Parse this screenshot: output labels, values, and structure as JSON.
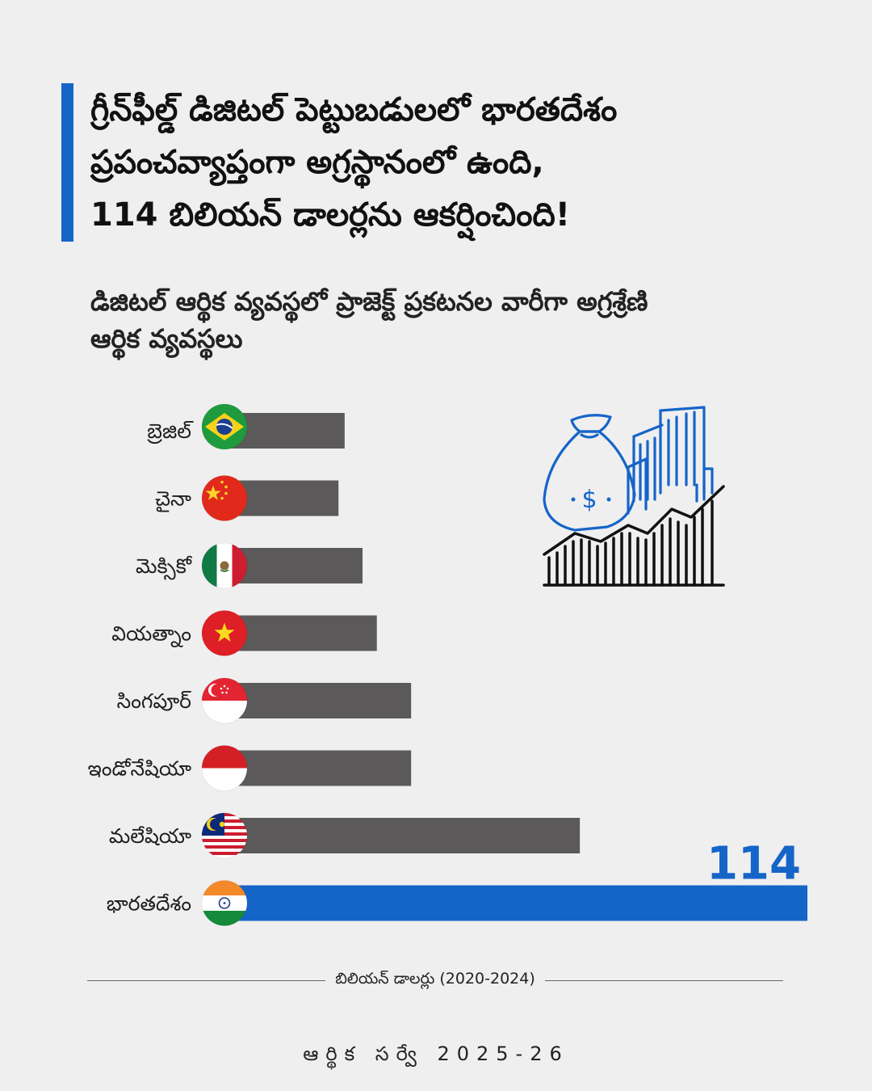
{
  "header": {
    "title_lines": [
      "గ్రీన్‌ఫీల్డ్ డిజిటల్ పెట్టుబడులలో భారతదేశం",
      "ప్రపంచవ్యాప్తంగా అగ్రస్థానంలో ఉంది,",
      "114 బిలియన్ డాలర్లను ఆకర్షించింది!"
    ],
    "subtitle_lines": [
      "డిజిటల్ ఆర్థిక వ్యవస్థలో ప్రాజెక్ట్ ప్రకటనల వారీగా అగ్రశ్రేణి",
      "ఆర్థిక వ్యవస్థలు"
    ]
  },
  "colors": {
    "accent": "#1565c8",
    "bar": "#5b5959",
    "background": "#efeff0"
  },
  "chart_data": {
    "type": "bar",
    "orientation": "horizontal",
    "categories": [
      "బ్రెజిల్",
      "చైనా",
      "మెక్సికో",
      "వియత్నాం",
      "సింగపూర్",
      "ఇండోనేషియా",
      "మలేషియా",
      "భారతదేశం"
    ],
    "flags": [
      "brazil-flag-icon",
      "china-flag-icon",
      "mexico-flag-icon",
      "vietnam-flag-icon",
      "singapore-flag-icon",
      "indonesia-flag-icon",
      "malaysia-flag-icon",
      "india-flag-icon"
    ],
    "values": [
      23.5,
      22.3,
      27,
      29.8,
      36.5,
      36.5,
      69.5,
      114
    ],
    "value_labels": [
      "",
      "",
      "",
      "",
      "",
      "",
      "",
      "114"
    ],
    "highlight_index": 7,
    "xlim": [
      0,
      114
    ],
    "xlabel": "బిలియన్ డాలర్లు (2020-2024)",
    "grid": false,
    "legend": "none"
  },
  "footer": {
    "source": "ఆర్థిక సర్వే 2025-26"
  }
}
